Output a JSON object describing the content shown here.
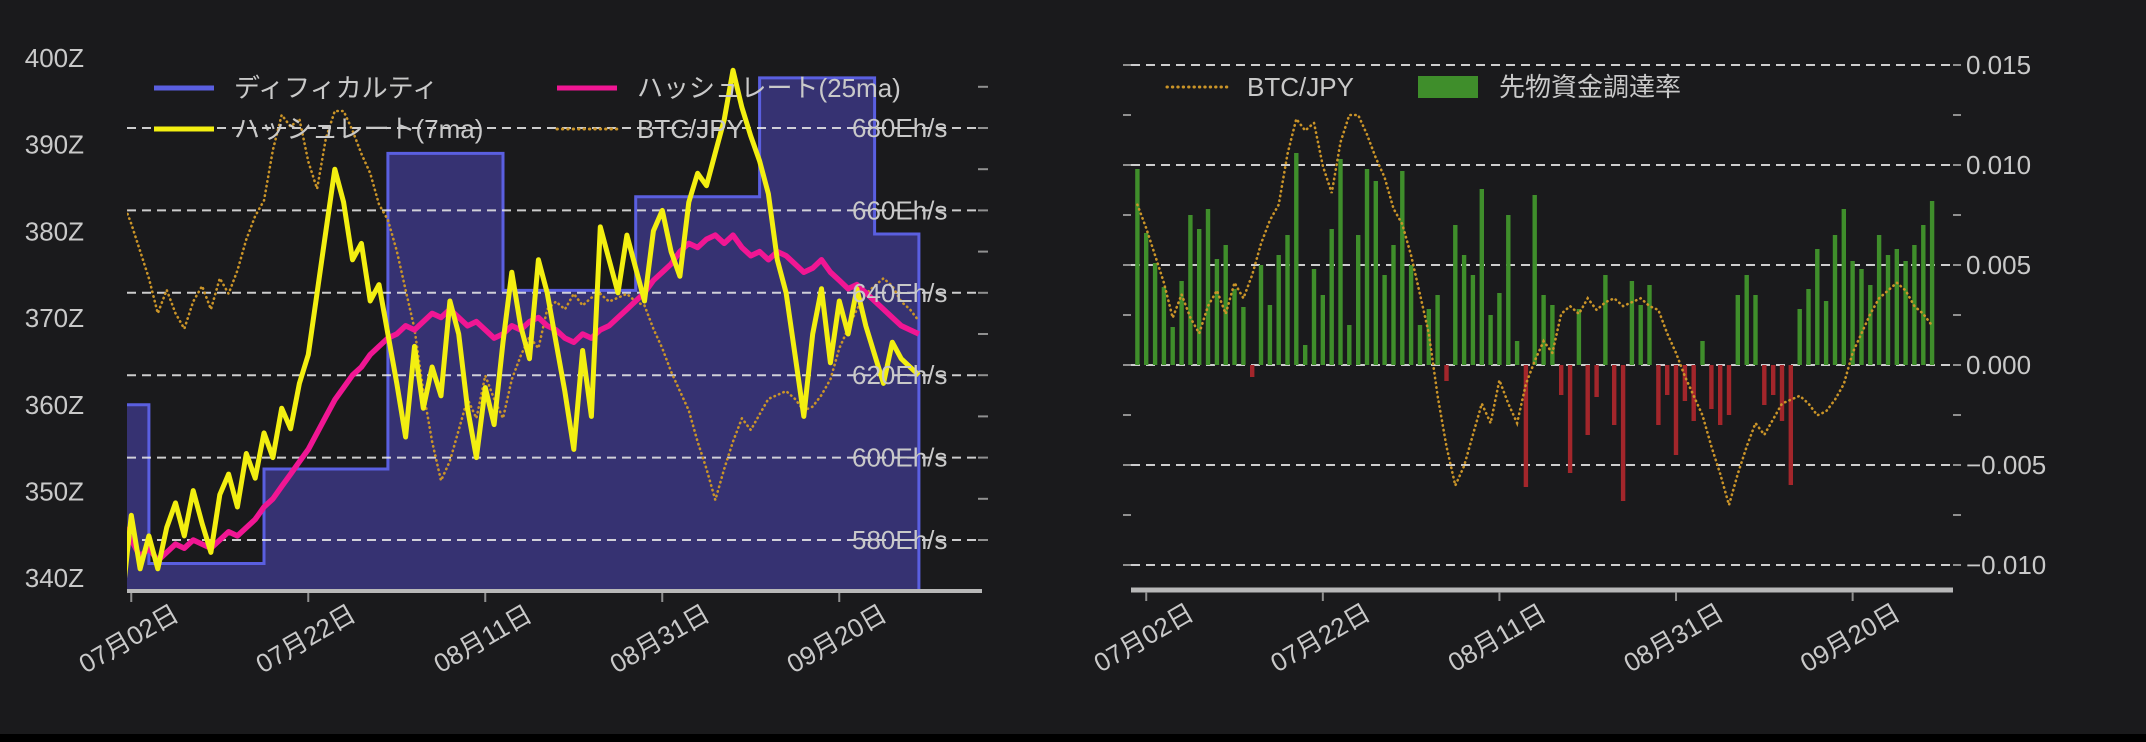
{
  "page": {
    "background_color": "#1a1a1c",
    "bottom_bar_color": "#000000",
    "text_color": "#c9c9c9",
    "gridline_color": "#ececec",
    "axis_line_color": "#b8b8b8",
    "tick_color": "#909090"
  },
  "chart_data": [
    {
      "id": "difficulty-hashrate-chart",
      "type": "line",
      "position": "left",
      "x_tick_labels": [
        "07月02日",
        "07月22日",
        "08月11日",
        "08月31日",
        "09月20日"
      ],
      "x_tick_point_index": [
        1,
        21,
        41,
        61,
        81
      ],
      "x_point_count": 91,
      "y_left_axis": {
        "unit": "Z",
        "ticks": [
          {
            "label": "400Z",
            "value": 400
          },
          {
            "label": "390Z",
            "value": 390
          },
          {
            "label": "380Z",
            "value": 380
          },
          {
            "label": "370Z",
            "value": 370
          },
          {
            "label": "360Z",
            "value": 360
          },
          {
            "label": "350Z",
            "value": 350
          },
          {
            "label": "340Z",
            "value": 340
          }
        ]
      },
      "y_right_axis": {
        "unit": "Eh/s",
        "gridlines": true,
        "minor_tick_step": 10,
        "ticks": [
          {
            "label": "680Eh/s",
            "value": 680
          },
          {
            "label": "660Eh/s",
            "value": 660
          },
          {
            "label": "640Eh/s",
            "value": 640
          },
          {
            "label": "620Eh/s",
            "value": 620
          },
          {
            "label": "600Eh/s",
            "value": 600
          },
          {
            "label": "580Eh/s",
            "value": 580
          }
        ]
      },
      "legend": [
        {
          "label": "ディフィカルティ",
          "color": "#5a5fe0",
          "swatch": "line",
          "row": 0,
          "col": 0
        },
        {
          "label": "ハッシュレート(25ma)",
          "color": "#f01693",
          "swatch": "line",
          "row": 0,
          "col": 1
        },
        {
          "label": "ハッシュレート(7ma)",
          "color": "#f3ef11",
          "swatch": "line",
          "row": 1,
          "col": 0
        },
        {
          "label": "BTC/JPY",
          "color": "#ca9428",
          "swatch": "dotted",
          "row": 1,
          "col": 1
        }
      ],
      "series": [
        {
          "name": "ディフィカルティ",
          "axis": "left",
          "style": "step-area",
          "stroke": "#5a5fe0",
          "fill": "#363272",
          "values": [
            360,
            360,
            360,
            341.7,
            341.7,
            341.7,
            341.7,
            341.7,
            341.7,
            341.7,
            341.7,
            341.7,
            341.7,
            341.7,
            341.7,
            341.7,
            352.6,
            352.6,
            352.6,
            352.6,
            352.6,
            352.6,
            352.6,
            352.6,
            352.6,
            352.6,
            352.6,
            352.6,
            352.6,
            352.6,
            389,
            389,
            389,
            389,
            389,
            389,
            389,
            389,
            389,
            389,
            389,
            389,
            389,
            373.2,
            373.2,
            373.2,
            373.2,
            373.2,
            373.2,
            373.2,
            373.2,
            373.2,
            373.2,
            373.2,
            373.2,
            373.2,
            373.2,
            373.2,
            384,
            384,
            384,
            384,
            384,
            384,
            384,
            384,
            384,
            384,
            384,
            384,
            384,
            384,
            397.7,
            397.7,
            397.7,
            397.7,
            397.7,
            397.7,
            397.7,
            397.7,
            397.7,
            397.7,
            397.7,
            397.7,
            397.7,
            379.7,
            379.7,
            379.7,
            379.7,
            379.7,
            379.7
          ]
        },
        {
          "name": "ハッシュレート(7ma)",
          "axis": "right",
          "style": "line",
          "stroke": "#f3ef11",
          "values": [
            566,
            586,
            573,
            581,
            573,
            583,
            589,
            581,
            592,
            584,
            577,
            591,
            596,
            588,
            601,
            595,
            606,
            600,
            612,
            607,
            618,
            625,
            640,
            655,
            670,
            662,
            648,
            652,
            638,
            642,
            630,
            618,
            605,
            627,
            612,
            622,
            615,
            638,
            630,
            612,
            600,
            617,
            608,
            628,
            645,
            632,
            624,
            648,
            640,
            628,
            616,
            602,
            626,
            610,
            656,
            648,
            640,
            654,
            646,
            638,
            655,
            660,
            650,
            644,
            662,
            669,
            666,
            674,
            682,
            694,
            685,
            678,
            672,
            664,
            648,
            640,
            625,
            610,
            630,
            641,
            623,
            638,
            630,
            641,
            632,
            625,
            618,
            628,
            624,
            622,
            620
          ]
        },
        {
          "name": "ハッシュレート(25ma)",
          "axis": "right",
          "style": "line",
          "stroke": "#f01693",
          "values": [
            584,
            580,
            576,
            578,
            575,
            577,
            579,
            578,
            580,
            579,
            578,
            580,
            582,
            581,
            583,
            585,
            588,
            590,
            593,
            596,
            599,
            602,
            606,
            610,
            614,
            617,
            620,
            622,
            625,
            627,
            629,
            630,
            632,
            631,
            633,
            635,
            634,
            636,
            634,
            632,
            633,
            631,
            629,
            630,
            632,
            631,
            633,
            634,
            632,
            631,
            629,
            628,
            630,
            629,
            631,
            632,
            634,
            636,
            638,
            640,
            643,
            645,
            647,
            650,
            652,
            651,
            653,
            654,
            652,
            654,
            651,
            649,
            650,
            648,
            650,
            649,
            647,
            645,
            646,
            648,
            645,
            643,
            641,
            642,
            640,
            638,
            636,
            634,
            632,
            631,
            630
          ]
        },
        {
          "name": "BTC/JPY",
          "axis": "unlabeled-normalized",
          "style": "dotted",
          "stroke": "#ca9428",
          "scale_note": "price axis not shown; values normalized 0-1 over visible range",
          "values": [
            0.77,
            0.71,
            0.64,
            0.57,
            0.48,
            0.54,
            0.48,
            0.44,
            0.51,
            0.55,
            0.49,
            0.57,
            0.53,
            0.59,
            0.67,
            0.73,
            0.77,
            0.9,
            0.99,
            0.96,
            0.98,
            0.87,
            0.8,
            0.93,
            1.0,
            1.0,
            0.95,
            0.89,
            0.84,
            0.76,
            0.72,
            0.64,
            0.54,
            0.44,
            0.28,
            0.15,
            0.05,
            0.1,
            0.18,
            0.26,
            0.21,
            0.32,
            0.26,
            0.21,
            0.31,
            0.37,
            0.42,
            0.39,
            0.49,
            0.51,
            0.49,
            0.53,
            0.5,
            0.52,
            0.53,
            0.51,
            0.52,
            0.53,
            0.51,
            0.5,
            0.44,
            0.39,
            0.33,
            0.28,
            0.23,
            0.15,
            0.08,
            0.0,
            0.08,
            0.15,
            0.21,
            0.18,
            0.22,
            0.26,
            0.27,
            0.28,
            0.26,
            0.23,
            0.24,
            0.27,
            0.31,
            0.39,
            0.44,
            0.49,
            0.53,
            0.55,
            0.57,
            0.55,
            0.51,
            0.49,
            0.46
          ]
        }
      ]
    },
    {
      "id": "funding-rate-chart",
      "type": "bar",
      "position": "right",
      "x_tick_labels": [
        "07月02日",
        "07月22日",
        "08月11日",
        "08月31日",
        "09月20日"
      ],
      "x_tick_point_index": [
        1,
        21,
        41,
        61,
        81
      ],
      "x_point_count": 91,
      "y_right_axis": {
        "gridlines": true,
        "minor_tick_step": 0.0025,
        "ticks": [
          {
            "label": "0.015",
            "value": 0.015
          },
          {
            "label": "0.010",
            "value": 0.01
          },
          {
            "label": "0.005",
            "value": 0.005
          },
          {
            "label": "0.000",
            "value": 0.0
          },
          {
            "label": "−0.005",
            "value": -0.005
          },
          {
            "label": "−0.010",
            "value": -0.01
          }
        ]
      },
      "legend": [
        {
          "label": "BTC/JPY",
          "color": "#ca9428",
          "swatch": "dotted",
          "row": 0,
          "col": 0
        },
        {
          "label": "先物資金調達率",
          "color": "#3f8e2b",
          "swatch": "rect",
          "row": 0,
          "col": 1
        }
      ],
      "series": [
        {
          "name": "BTC/JPY",
          "axis": "unlabeled-normalized",
          "style": "dotted",
          "stroke": "#ca9428",
          "scale_note": "price axis not shown; values normalized 0-1 over visible range",
          "values": [
            0.77,
            0.71,
            0.64,
            0.57,
            0.48,
            0.54,
            0.48,
            0.44,
            0.51,
            0.55,
            0.49,
            0.57,
            0.53,
            0.59,
            0.67,
            0.73,
            0.77,
            0.9,
            0.99,
            0.96,
            0.98,
            0.87,
            0.8,
            0.93,
            1.0,
            1.0,
            0.95,
            0.89,
            0.84,
            0.76,
            0.72,
            0.64,
            0.54,
            0.44,
            0.28,
            0.15,
            0.05,
            0.1,
            0.18,
            0.26,
            0.21,
            0.32,
            0.26,
            0.21,
            0.31,
            0.37,
            0.42,
            0.39,
            0.49,
            0.51,
            0.49,
            0.53,
            0.5,
            0.52,
            0.53,
            0.51,
            0.52,
            0.53,
            0.51,
            0.5,
            0.44,
            0.39,
            0.33,
            0.28,
            0.23,
            0.15,
            0.08,
            0.0,
            0.08,
            0.15,
            0.21,
            0.18,
            0.22,
            0.26,
            0.27,
            0.28,
            0.26,
            0.23,
            0.24,
            0.27,
            0.31,
            0.39,
            0.44,
            0.49,
            0.53,
            0.55,
            0.57,
            0.55,
            0.51,
            0.49,
            0.46
          ]
        },
        {
          "name": "先物資金調達率",
          "axis": "right",
          "style": "bar",
          "color_positive": "#3f8e2b",
          "color_negative": "#a3262b",
          "values": [
            0.0098,
            0.0066,
            0.0051,
            0.0039,
            0.0019,
            0.0042,
            0.0075,
            0.0068,
            0.0078,
            0.0053,
            0.006,
            0.0038,
            0.0029,
            -0.0006,
            0.005,
            0.003,
            0.0055,
            0.0065,
            0.0106,
            0.001,
            0.0048,
            0.0035,
            0.0068,
            0.0103,
            0.002,
            0.0065,
            0.0098,
            0.0092,
            0.0045,
            0.006,
            0.0097,
            0.005,
            0.002,
            0.0028,
            0.0035,
            -0.0008,
            0.007,
            0.0055,
            0.0045,
            0.0088,
            0.0025,
            0.0036,
            0.0075,
            0.0012,
            -0.0061,
            0.0085,
            0.0035,
            0.003,
            -0.0015,
            -0.0054,
            0.0028,
            -0.0035,
            -0.0016,
            0.0045,
            -0.003,
            -0.0068,
            0.0042,
            0.003,
            0.004,
            -0.003,
            -0.0015,
            -0.0045,
            -0.0018,
            -0.0028,
            0.0012,
            -0.0022,
            -0.003,
            -0.0025,
            0.0035,
            0.0045,
            0.0035,
            -0.002,
            -0.0015,
            -0.0028,
            -0.006,
            0.0028,
            0.0038,
            0.0058,
            0.0032,
            0.0065,
            0.0078,
            0.0052,
            0.0048,
            0.004,
            0.0065,
            0.0055,
            0.0058,
            0.0052,
            0.006,
            0.007,
            0.0082
          ]
        }
      ]
    }
  ]
}
